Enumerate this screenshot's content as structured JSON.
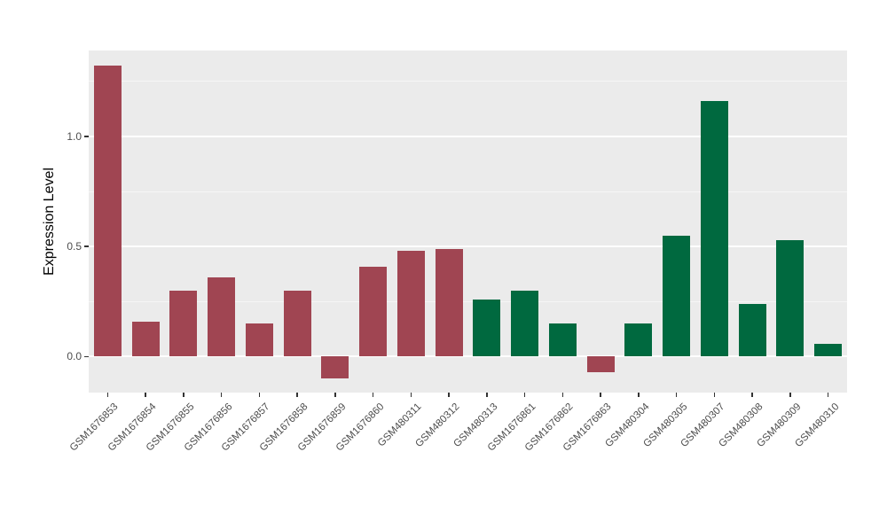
{
  "chart_data": {
    "type": "bar",
    "title": "",
    "xlabel": "",
    "ylabel": "Expression Level",
    "ylim": [
      -0.163,
      1.39
    ],
    "yticks": [
      0,
      0.5,
      1
    ],
    "ytick_labels": [
      "0.0",
      "0.5",
      "1.0"
    ],
    "minor_gridlines": [
      0.25,
      0.75,
      1.25
    ],
    "grid": true,
    "legend_position": "none",
    "categories": [
      "GSM1676853",
      "GSM1676854",
      "GSM1676855",
      "GSM1676856",
      "GSM1676857",
      "GSM1676858",
      "GSM1676859",
      "GSM1676860",
      "GSM480311",
      "GSM480312",
      "GSM480313",
      "GSM1676861",
      "GSM1676862",
      "GSM1676863",
      "GSM480304",
      "GSM480305",
      "GSM480307",
      "GSM480308",
      "GSM480309",
      "GSM480310"
    ],
    "values": [
      1.32,
      0.16,
      0.3,
      0.36,
      0.15,
      0.3,
      -0.1,
      0.41,
      0.48,
      0.49,
      0.26,
      0.3,
      0.15,
      -0.07,
      0.15,
      0.55,
      1.16,
      0.24,
      0.53,
      0.06
    ],
    "groups": [
      "maroon",
      "maroon",
      "maroon",
      "maroon",
      "maroon",
      "maroon",
      "maroon",
      "maroon",
      "maroon",
      "maroon",
      "green",
      "green",
      "green",
      "maroon",
      "green",
      "green",
      "green",
      "green",
      "green",
      "green"
    ],
    "palette": {
      "maroon": "#A04552",
      "green": "#00693F"
    },
    "colors": {
      "plot_background": "#EBEBEB",
      "grid_major": "#FFFFFF",
      "tick_label": "#4D4D4D",
      "axis_title": "#000000"
    }
  }
}
